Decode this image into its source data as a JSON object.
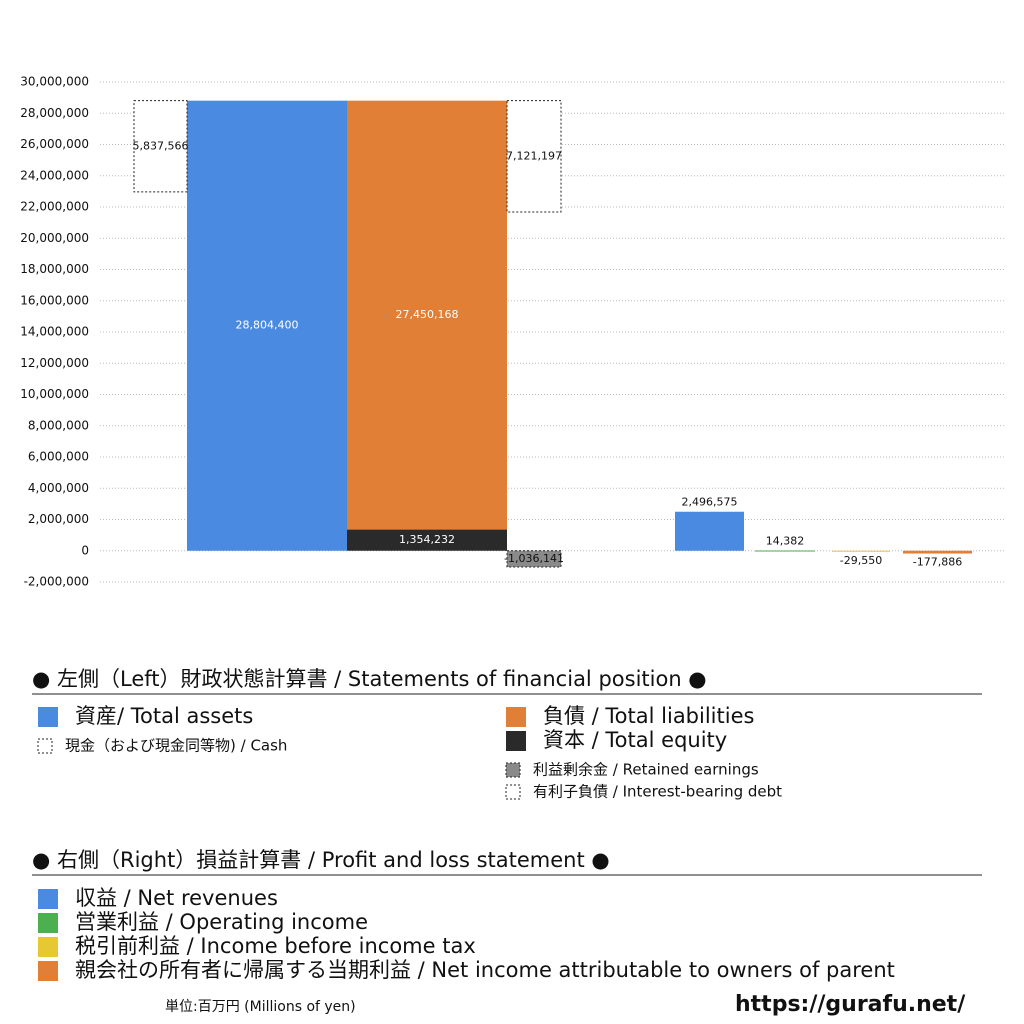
{
  "chart_data": {
    "type": "bar",
    "ylim": [
      -2000000,
      30000000
    ],
    "yticks": [
      {
        "value": -2000000,
        "label": "-2,000,000"
      },
      0,
      {
        "value": 2000000,
        "label": "2,000,000"
      },
      {
        "value": 4000000,
        "label": "4,000,000"
      },
      {
        "value": 6000000,
        "label": "6,000,000"
      },
      {
        "value": 8000000,
        "label": "8,000,000"
      },
      {
        "value": 10000000,
        "label": "10,000,000"
      },
      {
        "value": 12000000,
        "label": "12,000,000"
      },
      {
        "value": 14000000,
        "label": "14,000,000"
      },
      {
        "value": 16000000,
        "label": "16,000,000"
      },
      {
        "value": 18000000,
        "label": "18,000,000"
      },
      {
        "value": 20000000,
        "label": "20,000,000"
      },
      {
        "value": 22000000,
        "label": "22,000,000"
      },
      {
        "value": 24000000,
        "label": "24,000,000"
      },
      {
        "value": 26000000,
        "label": "26,000,000"
      },
      {
        "value": 28000000,
        "label": "28,000,000"
      },
      {
        "value": 30000000,
        "label": "30,000,000"
      }
    ],
    "grid": true,
    "series": [
      {
        "name": "資産/ Total assets",
        "color": "#4a8ae0",
        "values": [
          28804400
        ],
        "value_labels": [
          "28,804,400"
        ]
      },
      {
        "name": "現金（および現金同等物) / Cash",
        "color": "#ffffff",
        "values": [
          5837566
        ],
        "value_labels": [
          "5,837,566"
        ]
      },
      {
        "name": "負債 / Total liabilities",
        "color": "#e07f35",
        "values": [
          27450168
        ],
        "value_labels": [
          "27,450,168"
        ]
      },
      {
        "name": "資本 / Total equity",
        "color": "#2a2a2a",
        "values": [
          1354232
        ],
        "value_labels": [
          "1,354,232"
        ]
      },
      {
        "name": "利益剰余金 / Retained earnings",
        "color": "#8a8a8a",
        "values": [
          -1036141
        ],
        "value_labels": [
          "-1,036,141"
        ]
      },
      {
        "name": "有利子負債 / Interest-bearing debt",
        "color": "#ffffff",
        "values": [
          7121197
        ],
        "value_labels": [
          "7,121,197"
        ]
      },
      {
        "name": "収益 / Net revenues",
        "color": "#4a8ae0",
        "values": [
          2496575
        ],
        "value_labels": [
          "2,496,575"
        ]
      },
      {
        "name": "営業利益 / Operating income",
        "color": "#4caf50",
        "values": [
          14382
        ],
        "value_labels": [
          "14,382"
        ]
      },
      {
        "name": "税引前利益 / Income before income tax",
        "color": "#e8c832",
        "values": [
          -29550
        ],
        "value_labels": [
          "-29,550"
        ]
      },
      {
        "name": "親会社の所有者に帰属する当期利益 / Net income attributable to owners of parent",
        "color": "#e07f35",
        "values": [
          -177886
        ],
        "value_labels": [
          "-177,886"
        ]
      }
    ]
  },
  "legend": {
    "left_title": "● 左側（Left）財政状態計算書 / Statements of financial position ●",
    "right_title": "● 右側（Right）損益計算書 / Profit and loss statement ●"
  },
  "footer": {
    "unit": "単位:百万円 (Millions of yen)",
    "url": "https://gurafu.net/"
  }
}
